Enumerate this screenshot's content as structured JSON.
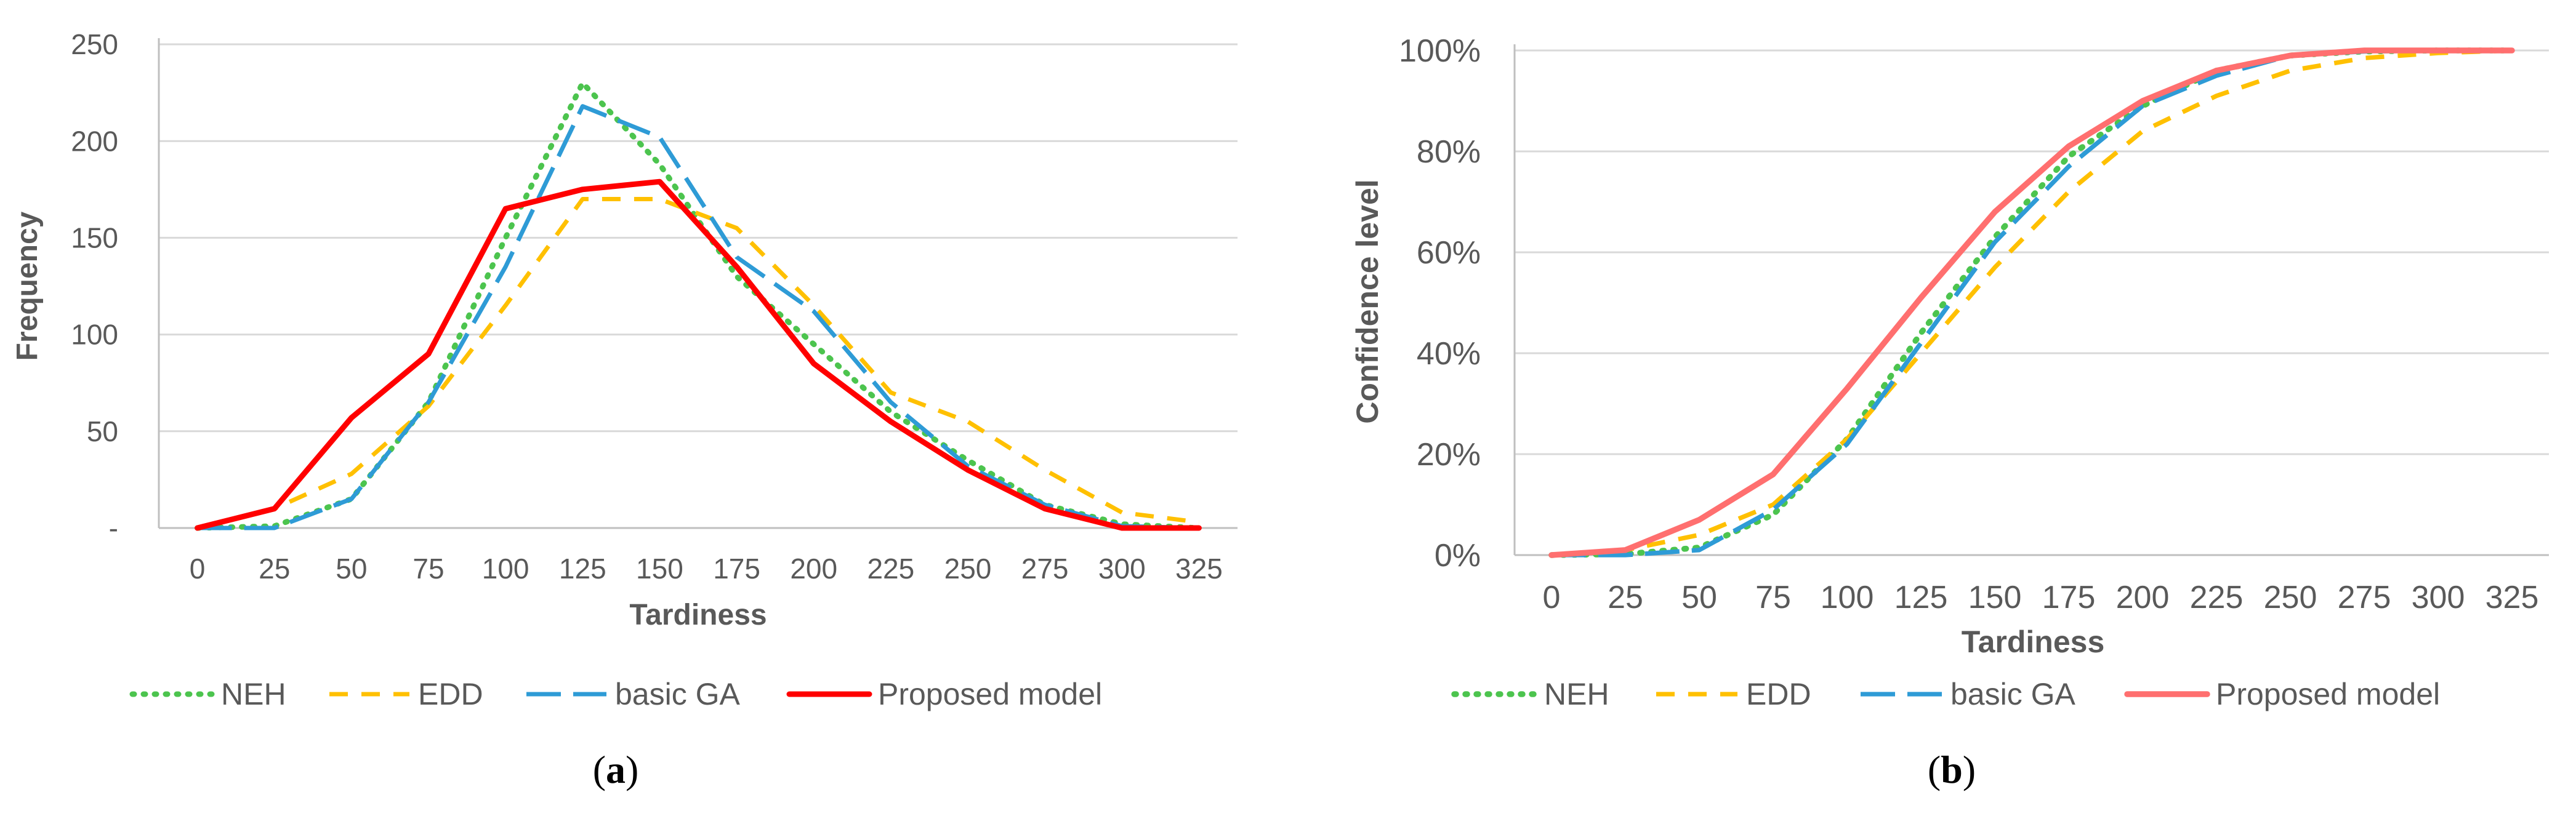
{
  "chart_data": [
    {
      "id": "a",
      "type": "line",
      "caption_open": "(",
      "caption_letter": "a",
      "caption_close": ")",
      "title": "",
      "xlabel": "Tardiness",
      "ylabel": "Frequency",
      "categories": [
        "0",
        "25",
        "50",
        "75",
        "100",
        "125",
        "150",
        "175",
        "200",
        "225",
        "250",
        "275",
        "300",
        "325"
      ],
      "ylim": [
        0,
        250
      ],
      "yticks": [
        {
          "value": 0,
          "label": "-"
        },
        {
          "value": 50,
          "label": "50"
        },
        {
          "value": 100,
          "label": "100"
        },
        {
          "value": 150,
          "label": "150"
        },
        {
          "value": 200,
          "label": "200"
        },
        {
          "value": 250,
          "label": "250"
        }
      ],
      "grid": true,
      "legend_position": "bottom",
      "series": [
        {
          "name": "NEH",
          "color": "#4CC44E",
          "style": "dotted",
          "values": [
            0,
            1,
            15,
            65,
            150,
            230,
            188,
            130,
            95,
            60,
            35,
            12,
            2,
            0
          ]
        },
        {
          "name": "EDD",
          "color": "#FFC000",
          "style": "dashed",
          "values": [
            0,
            10,
            28,
            63,
            115,
            170,
            170,
            155,
            115,
            70,
            55,
            30,
            8,
            3
          ]
        },
        {
          "name": "basic GA",
          "color": "#2E9BD6",
          "style": "longdash",
          "values": [
            0,
            0,
            15,
            65,
            135,
            218,
            202,
            140,
            112,
            65,
            32,
            12,
            1,
            0
          ]
        },
        {
          "name": "Proposed model",
          "color": "#FF0000",
          "style": "solid",
          "values": [
            0,
            10,
            57,
            90,
            165,
            175,
            179,
            135,
            85,
            55,
            30,
            10,
            0,
            0
          ]
        }
      ]
    },
    {
      "id": "b",
      "type": "line",
      "caption_open": "(",
      "caption_letter": "b",
      "caption_close": ")",
      "title": "",
      "xlabel": "Tardiness",
      "ylabel": "Confidence level",
      "categories": [
        "0",
        "25",
        "50",
        "75",
        "100",
        "125",
        "150",
        "175",
        "200",
        "225",
        "250",
        "275",
        "300",
        "325"
      ],
      "ylim": [
        0,
        100
      ],
      "yticks": [
        {
          "value": 0,
          "label": "0%"
        },
        {
          "value": 20,
          "label": "20%"
        },
        {
          "value": 40,
          "label": "40%"
        },
        {
          "value": 60,
          "label": "60%"
        },
        {
          "value": 80,
          "label": "80%"
        },
        {
          "value": 100,
          "label": "100%"
        }
      ],
      "grid": true,
      "legend_position": "bottom",
      "series": [
        {
          "name": "NEH",
          "color": "#4CC44E",
          "style": "dotted",
          "values": [
            0,
            0.2,
            1.5,
            8,
            23,
            44,
            63,
            79,
            89,
            96,
            99,
            99.8,
            100,
            100
          ]
        },
        {
          "name": "EDD",
          "color": "#FFC000",
          "style": "dashed",
          "values": [
            0,
            1,
            4,
            10,
            23,
            40,
            57,
            72,
            84,
            91,
            96,
            98.5,
            99.5,
            100
          ]
        },
        {
          "name": "basic GA",
          "color": "#2E9BD6",
          "style": "longdash",
          "values": [
            0,
            0,
            1,
            9,
            22,
            42,
            62,
            77,
            89,
            95,
            99,
            99.8,
            100,
            100
          ]
        },
        {
          "name": "Proposed model",
          "color": "#FF6F6F",
          "style": "solid",
          "values": [
            0,
            1,
            7,
            16,
            33,
            51,
            68,
            81,
            90,
            96,
            99,
            100,
            100,
            100
          ]
        }
      ]
    }
  ]
}
